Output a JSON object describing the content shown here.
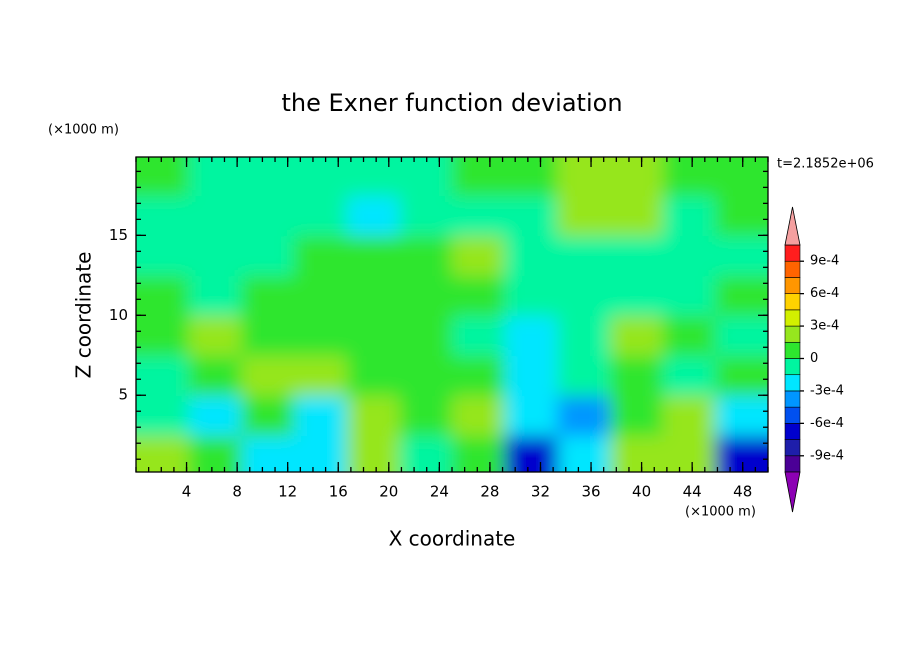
{
  "chart_data": {
    "type": "contour",
    "title": "the Exner function deviation",
    "x_label": "X coordinate",
    "y_label": "Z coordinate",
    "x_unit_label": "(×1000 m)",
    "y_unit_label": "(×1000 m)",
    "annotation": "t=2.1852e+06",
    "xlim": [
      0,
      50
    ],
    "xticks": [
      4,
      8,
      12,
      16,
      20,
      24,
      28,
      32,
      36,
      40,
      44,
      48
    ],
    "ylim": [
      0.2,
      19.9
    ],
    "yticks": [
      5,
      10,
      15
    ],
    "x": [
      2.08,
      6.25,
      10.42,
      14.58,
      18.75,
      22.92,
      27.08,
      31.25,
      35.42,
      39.58,
      43.75,
      47.92
    ],
    "y": [
      18.7,
      16.2,
      13.7,
      11.2,
      8.7,
      6.2,
      3.7,
      1.2
    ],
    "z": [
      [
        7e-05,
        -7e-05,
        -7e-05,
        -7e-05,
        -7e-05,
        -7e-05,
        7e-05,
        7e-05,
        0.0002,
        0.0002,
        7e-05,
        7e-05
      ],
      [
        -7e-05,
        -7e-05,
        -7e-05,
        -7e-05,
        -0.0002,
        -7e-05,
        -7e-05,
        -7e-05,
        0.0002,
        0.0002,
        -7e-05,
        7e-05
      ],
      [
        -7e-05,
        -7e-05,
        -7e-05,
        7e-05,
        7e-05,
        7e-05,
        0.0002,
        -7e-05,
        -7e-05,
        -7e-05,
        -7e-05,
        -7e-05
      ],
      [
        7e-05,
        -7e-05,
        7e-05,
        7e-05,
        7e-05,
        7e-05,
        7e-05,
        -7e-05,
        -7e-05,
        -7e-05,
        -7e-05,
        7e-05
      ],
      [
        7e-05,
        0.0002,
        7e-05,
        7e-05,
        7e-05,
        7e-05,
        -7e-05,
        -0.0002,
        -7e-05,
        0.0002,
        7e-05,
        -7e-05
      ],
      [
        -7e-05,
        7e-05,
        0.0002,
        0.0002,
        7e-05,
        7e-05,
        7e-05,
        -0.0002,
        -7e-05,
        7e-05,
        -7e-05,
        7e-05
      ],
      [
        -7e-05,
        -0.0002,
        7e-05,
        -0.0002,
        0.0002,
        7e-05,
        0.0002,
        -0.0002,
        -0.0004,
        7e-05,
        0.0002,
        -0.0002
      ],
      [
        0.0002,
        7e-05,
        -0.0002,
        -0.0002,
        0.0002,
        -7e-05,
        7e-05,
        -0.0006,
        -0.0002,
        0.0002,
        0.0002,
        -0.0006
      ]
    ],
    "levels": [
      -0.00105,
      -0.0009,
      -0.00075,
      -0.0006,
      -0.00045,
      -0.0003,
      -0.00015,
      0,
      0.00015,
      0.0003,
      0.00045,
      0.0006,
      0.00075,
      0.0009,
      0.00105
    ],
    "colors": [
      "#4b0096",
      "#1e1eaa",
      "#0000cd",
      "#0050f0",
      "#0096ff",
      "#00e6ff",
      "#00f5a0",
      "#2ee62e",
      "#96e61e",
      "#d2f000",
      "#ffd200",
      "#ff9600",
      "#ff6400",
      "#ff1e1e"
    ],
    "under_color": "#8c00b4",
    "over_color": "#f5a0a0",
    "cticks": [
      {
        "value": 0.0009,
        "label": "9e-4"
      },
      {
        "value": 0.0006,
        "label": "6e-4"
      },
      {
        "value": 0.0003,
        "label": "3e-4"
      },
      0,
      {
        "value": -0.0003,
        "label": "-3e-4"
      },
      {
        "value": -0.0006,
        "label": "-6e-4"
      },
      {
        "value": -0.0009,
        "label": "-9e-4"
      }
    ]
  }
}
